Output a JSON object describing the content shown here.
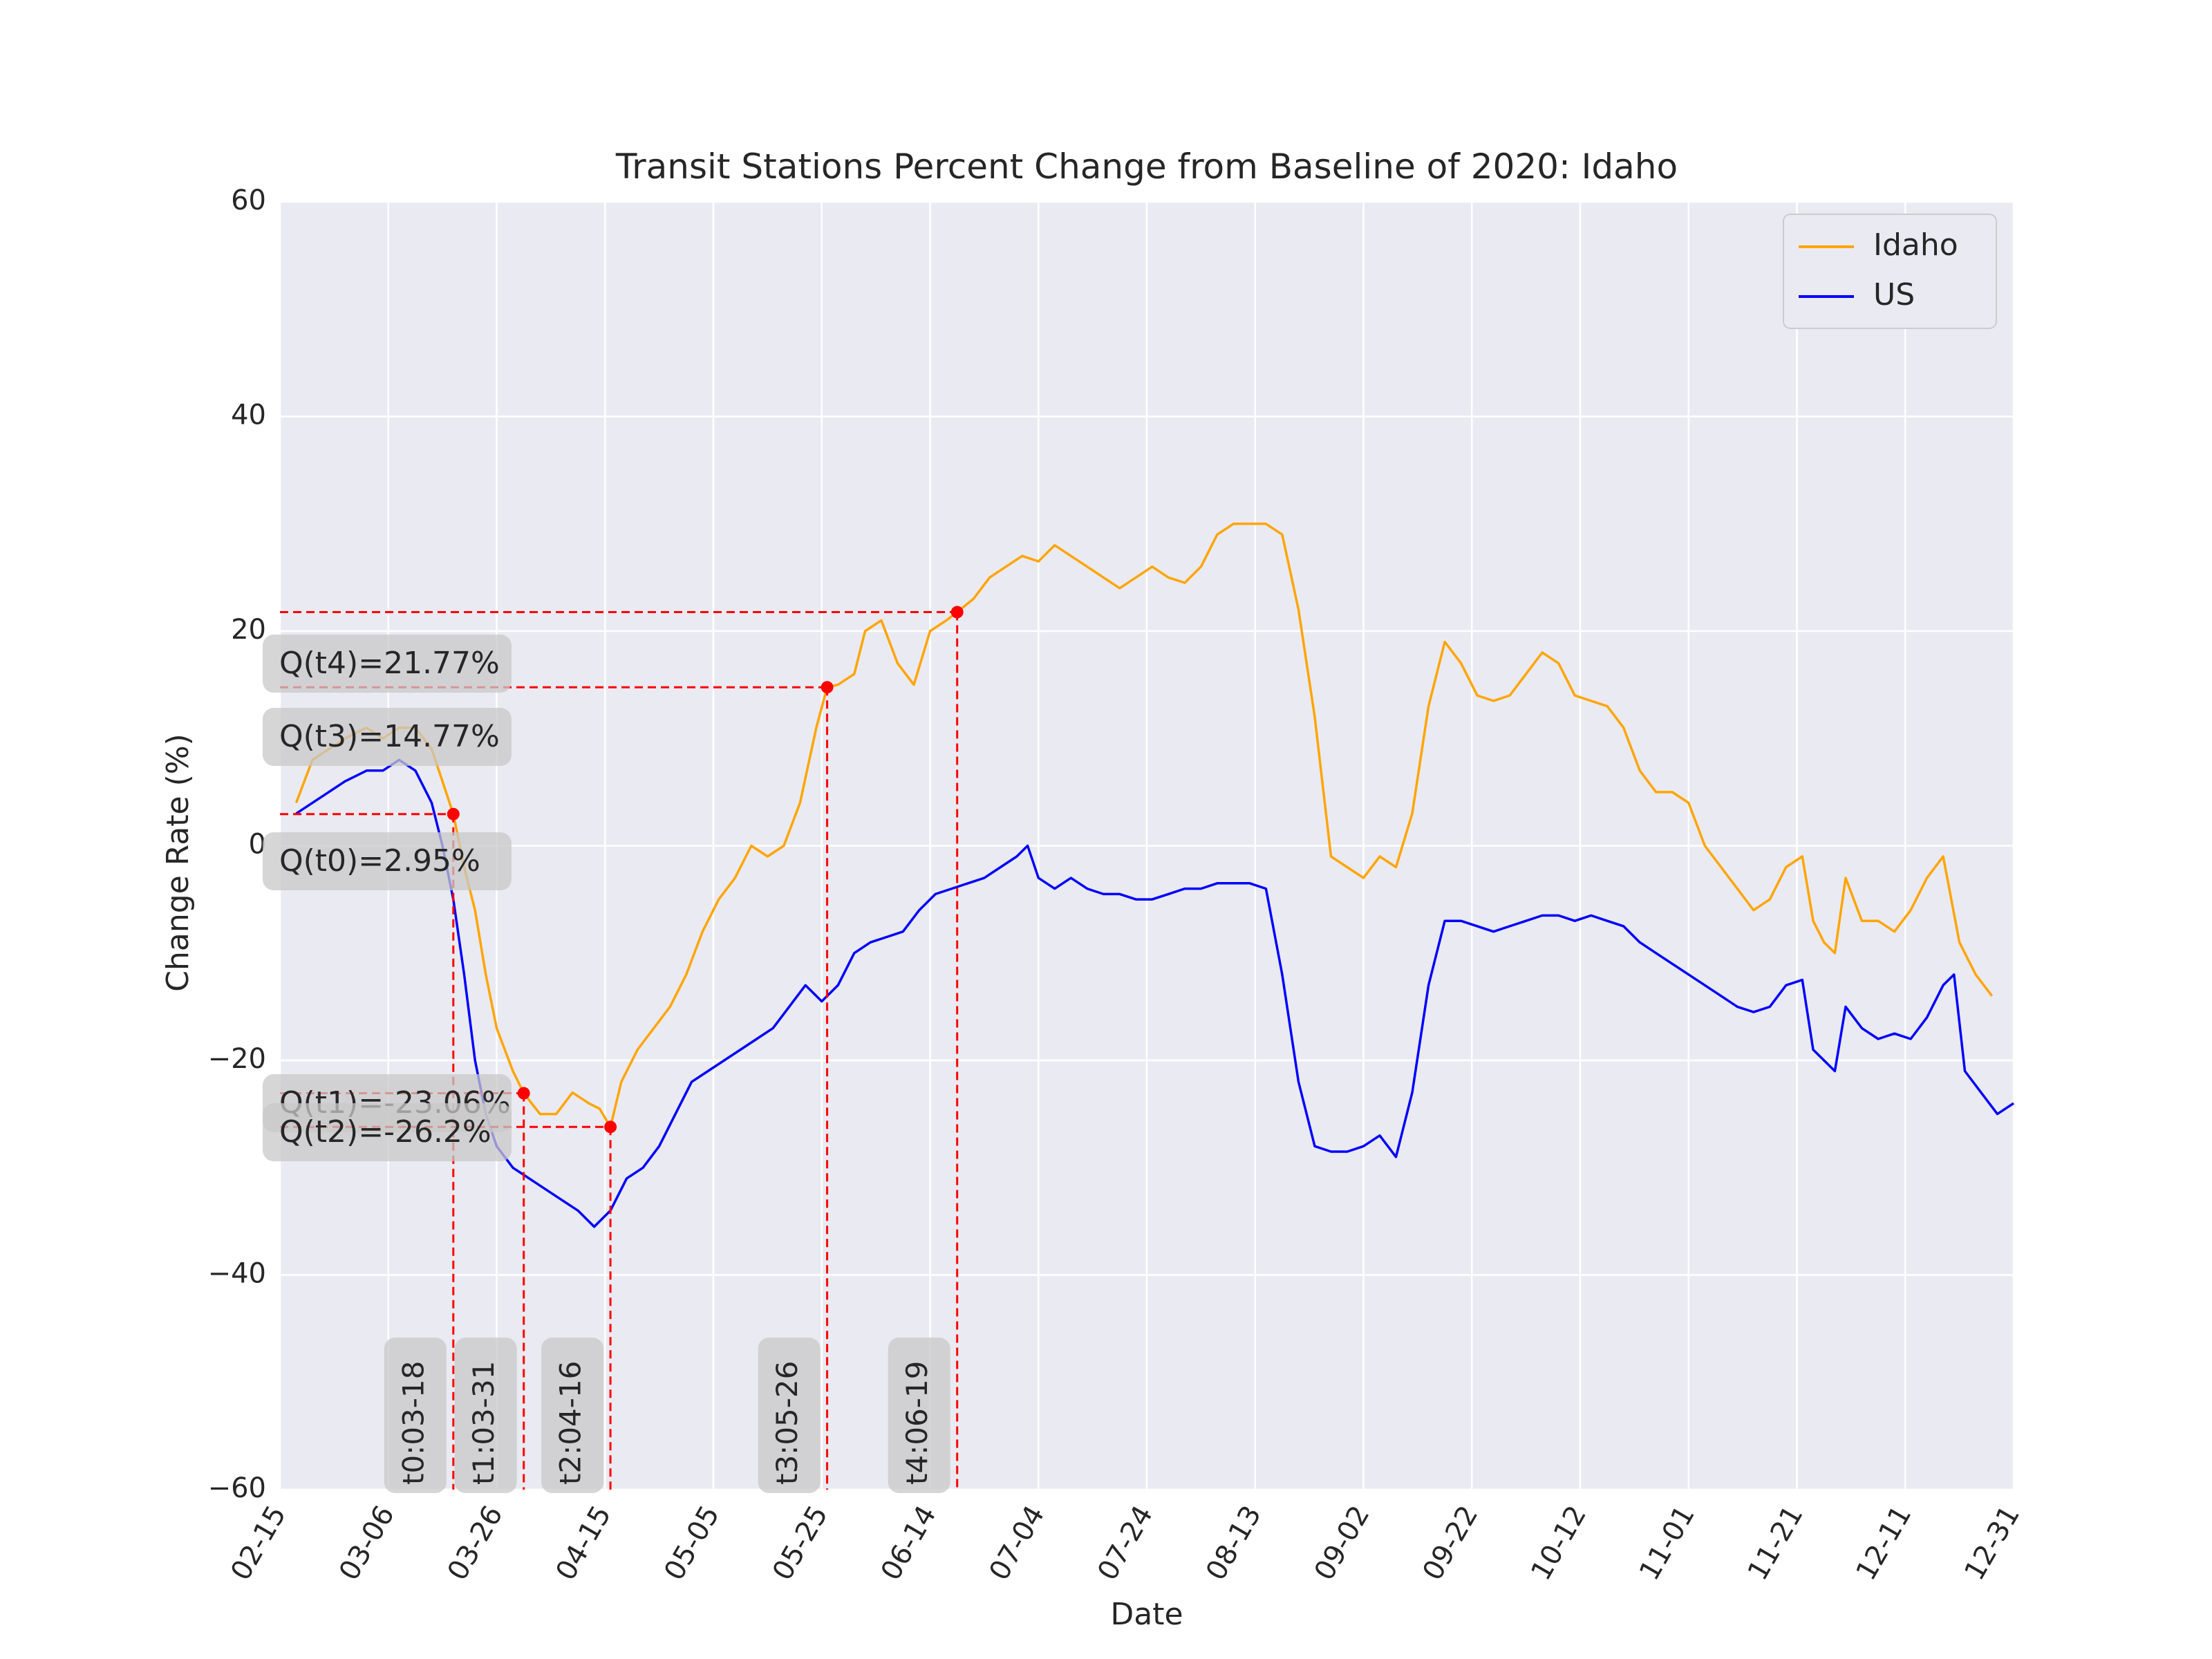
{
  "chart_data": {
    "type": "line",
    "title": "Transit Stations Percent Change from Baseline of 2020: Idaho",
    "xlabel": "Date",
    "ylabel": "Change Rate (%)",
    "xlim": [
      "02-15",
      "12-31"
    ],
    "ylim": [
      -60,
      60
    ],
    "grid": true,
    "legend_position": "top-right",
    "x_ticks": [
      "02-15",
      "03-06",
      "03-26",
      "04-15",
      "05-05",
      "05-25",
      "06-14",
      "07-04",
      "07-24",
      "08-13",
      "09-02",
      "09-22",
      "10-12",
      "11-01",
      "11-21",
      "12-11",
      "12-31"
    ],
    "y_ticks": [
      -60,
      -40,
      -20,
      0,
      20,
      40,
      60
    ],
    "y_tick_labels": [
      "−60",
      "−40",
      "−20",
      "0",
      "20",
      "40",
      "60"
    ],
    "series": [
      {
        "name": "Idaho",
        "color": "#FFA500",
        "smoothed": [
          [
            "02-18",
            4
          ],
          [
            "02-21",
            8
          ],
          [
            "02-24",
            9
          ],
          [
            "02-27",
            10
          ],
          [
            "03-02",
            11
          ],
          [
            "03-05",
            10
          ],
          [
            "03-08",
            11
          ],
          [
            "03-11",
            11
          ],
          [
            "03-14",
            9
          ],
          [
            "03-16",
            6
          ],
          [
            "03-18",
            2.95
          ],
          [
            "03-20",
            -2
          ],
          [
            "03-22",
            -6
          ],
          [
            "03-24",
            -12
          ],
          [
            "03-26",
            -17
          ],
          [
            "03-29",
            -21
          ],
          [
            "03-31",
            -23.06
          ],
          [
            "04-03",
            -25
          ],
          [
            "04-06",
            -25
          ],
          [
            "04-09",
            -23
          ],
          [
            "04-12",
            -24
          ],
          [
            "04-14",
            -24.5
          ],
          [
            "04-16",
            -26.2
          ],
          [
            "04-18",
            -22
          ],
          [
            "04-21",
            -19
          ],
          [
            "04-24",
            -17
          ],
          [
            "04-27",
            -15
          ],
          [
            "04-30",
            -12
          ],
          [
            "05-03",
            -8
          ],
          [
            "05-06",
            -5
          ],
          [
            "05-09",
            -3
          ],
          [
            "05-12",
            0
          ],
          [
            "05-15",
            -1
          ],
          [
            "05-18",
            0
          ],
          [
            "05-21",
            4
          ],
          [
            "05-24",
            11
          ],
          [
            "05-26",
            14.77
          ],
          [
            "05-28",
            15
          ],
          [
            "05-31",
            16
          ],
          [
            "06-02",
            20
          ],
          [
            "06-05",
            21
          ],
          [
            "06-08",
            17
          ],
          [
            "06-11",
            15
          ],
          [
            "06-14",
            20
          ],
          [
            "06-17",
            21
          ],
          [
            "06-19",
            21.77
          ],
          [
            "06-22",
            23
          ],
          [
            "06-25",
            25
          ],
          [
            "06-28",
            26
          ],
          [
            "07-01",
            27
          ],
          [
            "07-04",
            26.5
          ],
          [
            "07-07",
            28
          ],
          [
            "07-10",
            27
          ],
          [
            "07-13",
            26
          ],
          [
            "07-16",
            25
          ],
          [
            "07-19",
            24
          ],
          [
            "07-22",
            25
          ],
          [
            "07-25",
            26
          ],
          [
            "07-28",
            25
          ],
          [
            "07-31",
            24.5
          ],
          [
            "08-03",
            26
          ],
          [
            "08-06",
            29
          ],
          [
            "08-09",
            30
          ],
          [
            "08-12",
            30
          ],
          [
            "08-15",
            30
          ],
          [
            "08-18",
            29
          ],
          [
            "08-21",
            22
          ],
          [
            "08-24",
            12
          ],
          [
            "08-27",
            -1
          ],
          [
            "08-30",
            -2
          ],
          [
            "09-02",
            -3
          ],
          [
            "09-05",
            -1
          ],
          [
            "09-08",
            -2
          ],
          [
            "09-11",
            3
          ],
          [
            "09-14",
            13
          ],
          [
            "09-17",
            19
          ],
          [
            "09-20",
            17
          ],
          [
            "09-23",
            14
          ],
          [
            "09-26",
            13.5
          ],
          [
            "09-29",
            14
          ],
          [
            "10-02",
            16
          ],
          [
            "10-05",
            18
          ],
          [
            "10-08",
            17
          ],
          [
            "10-11",
            14
          ],
          [
            "10-14",
            13.5
          ],
          [
            "10-17",
            13
          ],
          [
            "10-20",
            11
          ],
          [
            "10-23",
            7
          ],
          [
            "10-26",
            5
          ],
          [
            "10-29",
            5
          ],
          [
            "11-01",
            4
          ],
          [
            "11-04",
            0
          ],
          [
            "11-07",
            -2
          ],
          [
            "11-10",
            -4
          ],
          [
            "11-13",
            -6
          ],
          [
            "11-16",
            -5
          ],
          [
            "11-19",
            -2
          ],
          [
            "11-22",
            -1
          ],
          [
            "11-24",
            -7
          ],
          [
            "11-26",
            -9
          ],
          [
            "11-28",
            -10
          ],
          [
            "11-30",
            -3
          ],
          [
            "12-03",
            -7
          ],
          [
            "12-06",
            -7
          ],
          [
            "12-09",
            -8
          ],
          [
            "12-12",
            -6
          ],
          [
            "12-15",
            -3
          ],
          [
            "12-18",
            -1
          ],
          [
            "12-21",
            -9
          ],
          [
            "12-24",
            -12
          ],
          [
            "12-27",
            -14
          ]
        ]
      },
      {
        "name": "US",
        "color": "#0000FF",
        "smoothed": [
          [
            "02-18",
            3
          ],
          [
            "02-21",
            4
          ],
          [
            "02-24",
            5
          ],
          [
            "02-27",
            6
          ],
          [
            "03-02",
            7
          ],
          [
            "03-05",
            7
          ],
          [
            "03-08",
            8
          ],
          [
            "03-11",
            7
          ],
          [
            "03-14",
            4
          ],
          [
            "03-16",
            0
          ],
          [
            "03-18",
            -5
          ],
          [
            "03-20",
            -12
          ],
          [
            "03-22",
            -20
          ],
          [
            "03-24",
            -25
          ],
          [
            "03-26",
            -28
          ],
          [
            "03-29",
            -30
          ],
          [
            "04-01",
            -31
          ],
          [
            "04-04",
            -32
          ],
          [
            "04-07",
            -33
          ],
          [
            "04-10",
            -34
          ],
          [
            "04-13",
            -35.5
          ],
          [
            "04-16",
            -34
          ],
          [
            "04-19",
            -31
          ],
          [
            "04-22",
            -30
          ],
          [
            "04-25",
            -28
          ],
          [
            "04-28",
            -25
          ],
          [
            "05-01",
            -22
          ],
          [
            "05-04",
            -21
          ],
          [
            "05-07",
            -20
          ],
          [
            "05-10",
            -19
          ],
          [
            "05-13",
            -18
          ],
          [
            "05-16",
            -17
          ],
          [
            "05-19",
            -15
          ],
          [
            "05-22",
            -13
          ],
          [
            "05-25",
            -14.5
          ],
          [
            "05-28",
            -13
          ],
          [
            "05-31",
            -10
          ],
          [
            "06-03",
            -9
          ],
          [
            "06-06",
            -8.5
          ],
          [
            "06-09",
            -8
          ],
          [
            "06-12",
            -6
          ],
          [
            "06-15",
            -4.5
          ],
          [
            "06-18",
            -4
          ],
          [
            "06-21",
            -3.5
          ],
          [
            "06-24",
            -3
          ],
          [
            "06-27",
            -2
          ],
          [
            "06-30",
            -1
          ],
          [
            "07-02",
            0
          ],
          [
            "07-04",
            -3
          ],
          [
            "07-07",
            -4
          ],
          [
            "07-10",
            -3
          ],
          [
            "07-13",
            -4
          ],
          [
            "07-16",
            -4.5
          ],
          [
            "07-19",
            -4.5
          ],
          [
            "07-22",
            -5
          ],
          [
            "07-25",
            -5
          ],
          [
            "07-28",
            -4.5
          ],
          [
            "07-31",
            -4
          ],
          [
            "08-03",
            -4
          ],
          [
            "08-06",
            -3.5
          ],
          [
            "08-09",
            -3.5
          ],
          [
            "08-12",
            -3.5
          ],
          [
            "08-15",
            -4
          ],
          [
            "08-18",
            -12
          ],
          [
            "08-21",
            -22
          ],
          [
            "08-24",
            -28
          ],
          [
            "08-27",
            -28.5
          ],
          [
            "08-30",
            -28.5
          ],
          [
            "09-02",
            -28
          ],
          [
            "09-05",
            -27
          ],
          [
            "09-08",
            -29
          ],
          [
            "09-11",
            -23
          ],
          [
            "09-14",
            -13
          ],
          [
            "09-17",
            -7
          ],
          [
            "09-20",
            -7
          ],
          [
            "09-23",
            -7.5
          ],
          [
            "09-26",
            -8
          ],
          [
            "09-29",
            -7.5
          ],
          [
            "10-02",
            -7
          ],
          [
            "10-05",
            -6.5
          ],
          [
            "10-08",
            -6.5
          ],
          [
            "10-11",
            -7
          ],
          [
            "10-14",
            -6.5
          ],
          [
            "10-17",
            -7
          ],
          [
            "10-20",
            -7.5
          ],
          [
            "10-23",
            -9
          ],
          [
            "10-26",
            -10
          ],
          [
            "10-29",
            -11
          ],
          [
            "11-01",
            -12
          ],
          [
            "11-04",
            -13
          ],
          [
            "11-07",
            -14
          ],
          [
            "11-10",
            -15
          ],
          [
            "11-13",
            -15.5
          ],
          [
            "11-16",
            -15
          ],
          [
            "11-19",
            -13
          ],
          [
            "11-22",
            -12.5
          ],
          [
            "11-24",
            -19
          ],
          [
            "11-26",
            -20
          ],
          [
            "11-28",
            -21
          ],
          [
            "11-30",
            -15
          ],
          [
            "12-03",
            -17
          ],
          [
            "12-06",
            -18
          ],
          [
            "12-09",
            -17.5
          ],
          [
            "12-12",
            -18
          ],
          [
            "12-15",
            -16
          ],
          [
            "12-18",
            -13
          ],
          [
            "12-20",
            -12
          ],
          [
            "12-22",
            -21
          ],
          [
            "12-25",
            -23
          ],
          [
            "12-28",
            -25
          ],
          [
            "12-31",
            -24
          ]
        ]
      }
    ],
    "annotations": [
      {
        "date": "03-18",
        "value": 2.95,
        "date_label": "t0:03-18",
        "value_label": "Q(t0)=2.95%"
      },
      {
        "date": "03-31",
        "value": -23.06,
        "date_label": "t1:03-31",
        "value_label": "Q(t1)=-23.06%"
      },
      {
        "date": "04-16",
        "value": -26.2,
        "date_label": "t2:04-16",
        "value_label": "Q(t2)=-26.2%"
      },
      {
        "date": "05-26",
        "value": 14.77,
        "date_label": "t3:05-26",
        "value_label": "Q(t3)=14.77%"
      },
      {
        "date": "06-19",
        "value": 21.77,
        "date_label": "t4:06-19",
        "value_label": "Q(t4)=21.77%"
      }
    ]
  }
}
